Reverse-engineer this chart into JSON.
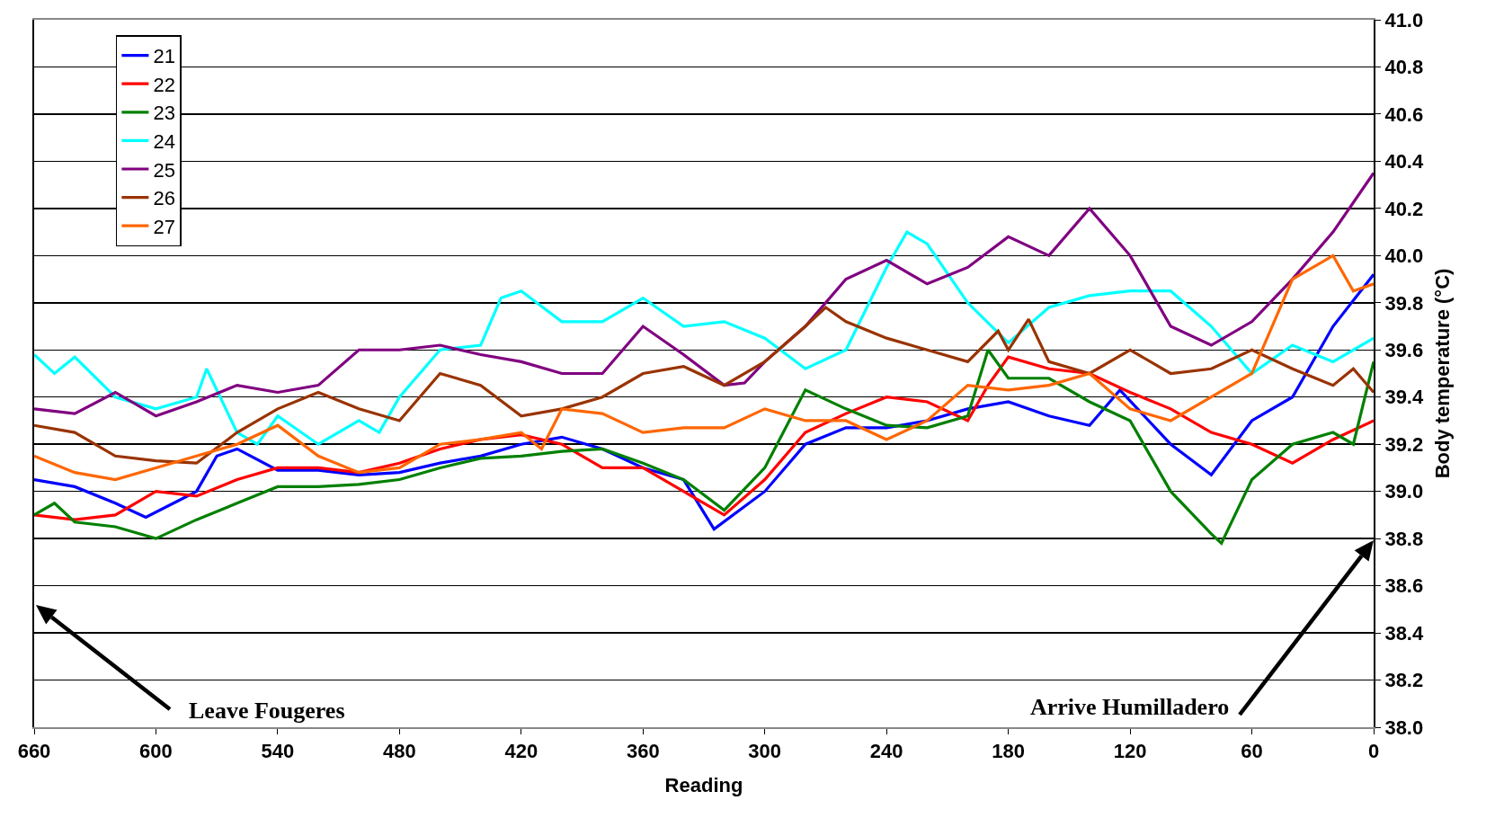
{
  "chart_data": {
    "type": "line",
    "xlabel": "Reading",
    "ylabel": "Body temperature (°C)",
    "xlim": [
      660,
      0
    ],
    "xticks": [
      660,
      600,
      540,
      480,
      420,
      360,
      300,
      240,
      180,
      120,
      60,
      0
    ],
    "ylim": [
      38.0,
      41.0
    ],
    "yticks": [
      {
        "value": 38.0,
        "label": "38.0"
      },
      {
        "value": 38.2,
        "label": "38.2"
      },
      {
        "value": 38.4,
        "label": "38.4"
      },
      {
        "value": 38.6,
        "label": "38.6"
      },
      {
        "value": 38.8,
        "label": "38.8"
      },
      {
        "value": 39.0,
        "label": "39.0"
      },
      {
        "value": 39.2,
        "label": "39.2"
      },
      {
        "value": 39.4,
        "label": "39.4"
      },
      {
        "value": 39.6,
        "label": "39.6"
      },
      {
        "value": 39.8,
        "label": "39.8"
      },
      {
        "value": 40.0,
        "label": "40.0"
      },
      {
        "value": 40.2,
        "label": "40.2"
      },
      {
        "value": 40.4,
        "label": "40.4"
      },
      {
        "value": 40.6,
        "label": "40.6"
      },
      {
        "value": 40.8,
        "label": "40.8"
      },
      {
        "value": 41.0,
        "label": "41.0"
      }
    ],
    "grid": "y",
    "legend": "top left",
    "marker": "none",
    "line_style": "solid",
    "annotations": [
      "Leave Fougeres",
      "Arrive Humilladero"
    ],
    "series": [
      {
        "name": "21",
        "color": "#0000ff",
        "x": [
          660,
          640,
          620,
          605,
          580,
          570,
          560,
          540,
          520,
          500,
          480,
          460,
          440,
          420,
          400,
          380,
          360,
          340,
          325,
          300,
          280,
          260,
          240,
          220,
          200,
          180,
          160,
          140,
          125,
          100,
          80,
          60,
          40,
          20,
          0
        ],
        "values": [
          39.05,
          39.02,
          38.95,
          38.89,
          39.0,
          39.15,
          39.18,
          39.09,
          39.09,
          39.07,
          39.08,
          39.12,
          39.15,
          39.2,
          39.23,
          39.18,
          39.1,
          39.05,
          38.84,
          39.0,
          39.2,
          39.27,
          39.27,
          39.3,
          39.35,
          39.38,
          39.32,
          39.28,
          39.43,
          39.2,
          39.07,
          39.3,
          39.4,
          39.7,
          39.92
        ]
      },
      {
        "name": "22",
        "color": "#ff0000",
        "x": [
          660,
          640,
          620,
          600,
          580,
          560,
          540,
          520,
          500,
          480,
          460,
          440,
          420,
          400,
          380,
          360,
          340,
          320,
          300,
          280,
          260,
          240,
          220,
          200,
          190,
          180,
          160,
          140,
          120,
          100,
          80,
          60,
          40,
          20,
          0
        ],
        "values": [
          38.9,
          38.88,
          38.9,
          39.0,
          38.98,
          39.05,
          39.1,
          39.1,
          39.08,
          39.12,
          39.18,
          39.22,
          39.24,
          39.2,
          39.1,
          39.1,
          39.0,
          38.9,
          39.05,
          39.25,
          39.33,
          39.4,
          39.38,
          39.3,
          39.45,
          39.57,
          39.52,
          39.5,
          39.42,
          39.35,
          39.25,
          39.2,
          39.12,
          39.22,
          39.3
        ]
      },
      {
        "name": "23",
        "color": "#008000",
        "x": [
          660,
          650,
          640,
          620,
          600,
          580,
          560,
          540,
          520,
          500,
          480,
          460,
          440,
          420,
          400,
          380,
          360,
          340,
          320,
          300,
          280,
          260,
          240,
          220,
          200,
          190,
          180,
          160,
          140,
          120,
          100,
          80,
          75,
          60,
          40,
          20,
          10,
          0
        ],
        "values": [
          38.9,
          38.95,
          38.87,
          38.85,
          38.8,
          38.88,
          38.95,
          39.02,
          39.02,
          39.03,
          39.05,
          39.1,
          39.14,
          39.15,
          39.17,
          39.18,
          39.12,
          39.05,
          38.92,
          39.1,
          39.43,
          39.35,
          39.28,
          39.27,
          39.32,
          39.6,
          39.48,
          39.48,
          39.38,
          39.3,
          39.0,
          38.82,
          38.78,
          39.05,
          39.2,
          39.25,
          39.2,
          39.55
        ]
      },
      {
        "name": "24",
        "color": "#00ffff",
        "x": [
          660,
          650,
          640,
          620,
          600,
          580,
          575,
          560,
          550,
          540,
          520,
          500,
          490,
          480,
          460,
          440,
          430,
          420,
          400,
          380,
          360,
          340,
          320,
          300,
          280,
          260,
          240,
          230,
          220,
          200,
          180,
          160,
          140,
          120,
          100,
          80,
          60,
          40,
          20,
          0
        ],
        "values": [
          39.58,
          39.5,
          39.57,
          39.4,
          39.35,
          39.4,
          39.52,
          39.25,
          39.2,
          39.32,
          39.2,
          39.3,
          39.25,
          39.4,
          39.6,
          39.62,
          39.82,
          39.85,
          39.72,
          39.72,
          39.82,
          39.7,
          39.72,
          39.65,
          39.52,
          39.6,
          39.95,
          40.1,
          40.05,
          39.8,
          39.63,
          39.78,
          39.83,
          39.85,
          39.85,
          39.7,
          39.5,
          39.62,
          39.55,
          39.65
        ]
      },
      {
        "name": "25",
        "color": "#800080",
        "x": [
          660,
          640,
          620,
          600,
          580,
          560,
          540,
          520,
          500,
          480,
          460,
          440,
          420,
          400,
          380,
          360,
          340,
          320,
          310,
          300,
          280,
          260,
          240,
          220,
          200,
          180,
          160,
          140,
          120,
          100,
          80,
          60,
          40,
          20,
          0
        ],
        "values": [
          39.35,
          39.33,
          39.42,
          39.32,
          39.38,
          39.45,
          39.42,
          39.45,
          39.6,
          39.6,
          39.62,
          39.58,
          39.55,
          39.5,
          39.5,
          39.7,
          39.58,
          39.45,
          39.46,
          39.55,
          39.7,
          39.9,
          39.98,
          39.88,
          39.95,
          40.08,
          40.0,
          40.2,
          40.0,
          39.7,
          39.62,
          39.72,
          39.9,
          40.1,
          40.35
        ]
      },
      {
        "name": "26",
        "color": "#993300",
        "x": [
          660,
          640,
          620,
          600,
          580,
          560,
          540,
          520,
          500,
          480,
          460,
          440,
          420,
          400,
          380,
          360,
          340,
          320,
          300,
          280,
          270,
          260,
          240,
          220,
          200,
          185,
          180,
          170,
          160,
          140,
          120,
          100,
          80,
          60,
          40,
          20,
          10,
          0
        ],
        "values": [
          39.28,
          39.25,
          39.15,
          39.13,
          39.12,
          39.25,
          39.35,
          39.42,
          39.35,
          39.3,
          39.5,
          39.45,
          39.32,
          39.35,
          39.4,
          39.5,
          39.53,
          39.45,
          39.55,
          39.7,
          39.78,
          39.72,
          39.65,
          39.6,
          39.55,
          39.68,
          39.6,
          39.73,
          39.55,
          39.5,
          39.6,
          39.5,
          39.52,
          39.6,
          39.52,
          39.45,
          39.52,
          39.42
        ]
      },
      {
        "name": "27",
        "color": "#ff6600",
        "x": [
          660,
          640,
          620,
          600,
          580,
          560,
          540,
          520,
          500,
          480,
          460,
          440,
          420,
          410,
          400,
          380,
          360,
          340,
          320,
          300,
          280,
          260,
          240,
          220,
          200,
          180,
          160,
          140,
          120,
          100,
          80,
          60,
          40,
          20,
          10,
          0
        ],
        "values": [
          39.15,
          39.08,
          39.05,
          39.1,
          39.15,
          39.2,
          39.28,
          39.15,
          39.08,
          39.1,
          39.2,
          39.22,
          39.25,
          39.18,
          39.35,
          39.33,
          39.25,
          39.27,
          39.27,
          39.35,
          39.3,
          39.3,
          39.22,
          39.3,
          39.45,
          39.43,
          39.45,
          39.5,
          39.35,
          39.3,
          39.4,
          39.5,
          39.9,
          40.0,
          39.85,
          39.88
        ]
      }
    ]
  }
}
